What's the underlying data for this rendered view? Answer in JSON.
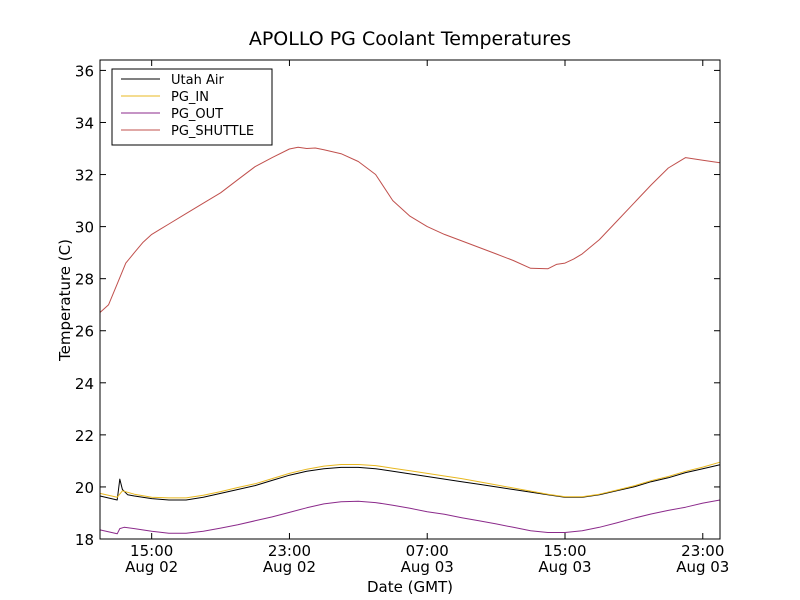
{
  "chart_data": {
    "type": "line",
    "title": "APOLLO PG Coolant Temperatures",
    "xlabel": "Date (GMT)",
    "ylabel": "Temperature (C)",
    "xlim": [
      0,
      36
    ],
    "ylim": [
      18,
      36.4
    ],
    "y_ticks": [
      18,
      20,
      22,
      24,
      26,
      28,
      30,
      32,
      34,
      36
    ],
    "x_ticks": [
      {
        "x": 3,
        "time": "15:00",
        "date": "Aug 02"
      },
      {
        "x": 11,
        "time": "23:00",
        "date": "Aug 02"
      },
      {
        "x": 19,
        "time": "07:00",
        "date": "Aug 03"
      },
      {
        "x": 27,
        "time": "15:00",
        "date": "Aug 03"
      },
      {
        "x": 35,
        "time": "23:00",
        "date": "Aug 03"
      }
    ],
    "legend_position": "top-left",
    "series": [
      {
        "name": "Utah Air",
        "color": "#000000",
        "x": [
          0,
          1,
          1.15,
          1.3,
          1.6,
          2,
          3,
          4,
          5,
          6,
          7,
          8,
          9,
          10,
          11,
          12,
          13,
          14,
          15,
          16,
          17,
          18,
          19,
          20,
          21,
          22,
          23,
          24,
          25,
          26,
          27,
          28,
          29,
          30,
          31,
          32,
          33,
          34,
          35,
          36
        ],
        "y": [
          19.65,
          19.5,
          20.3,
          19.9,
          19.7,
          19.65,
          19.55,
          19.5,
          19.5,
          19.6,
          19.75,
          19.9,
          20.05,
          20.25,
          20.45,
          20.6,
          20.7,
          20.75,
          20.75,
          20.7,
          20.6,
          20.5,
          20.4,
          20.3,
          20.2,
          20.1,
          20.0,
          19.9,
          19.8,
          19.7,
          19.6,
          19.6,
          19.7,
          19.85,
          20.0,
          20.2,
          20.35,
          20.55,
          20.7,
          20.85
        ]
      },
      {
        "name": "PG_IN",
        "color": "#e8b820",
        "x": [
          0,
          1,
          1.3,
          2,
          3,
          4,
          5,
          6,
          7,
          8,
          9,
          10,
          11,
          12,
          13,
          14,
          15,
          16,
          17,
          18,
          19,
          20,
          21,
          22,
          23,
          24,
          25,
          26,
          27,
          28,
          29,
          30,
          31,
          32,
          33,
          34,
          35,
          36
        ],
        "y": [
          19.75,
          19.6,
          19.85,
          19.72,
          19.6,
          19.58,
          19.58,
          19.68,
          19.82,
          19.98,
          20.12,
          20.32,
          20.52,
          20.68,
          20.8,
          20.86,
          20.86,
          20.82,
          20.72,
          20.62,
          20.52,
          20.42,
          20.32,
          20.2,
          20.08,
          19.96,
          19.84,
          19.72,
          19.62,
          19.62,
          19.72,
          19.88,
          20.04,
          20.24,
          20.4,
          20.6,
          20.76,
          20.95
        ]
      },
      {
        "name": "PG_OUT",
        "color": "#8b2a8b",
        "x": [
          0,
          1,
          1.15,
          1.4,
          2,
          3,
          4,
          5,
          6,
          7,
          8,
          9,
          10,
          11,
          12,
          13,
          14,
          15,
          16,
          17,
          18,
          19,
          20,
          21,
          22,
          23,
          24,
          25,
          26,
          27,
          28,
          29,
          30,
          31,
          32,
          33,
          34,
          35,
          36
        ],
        "y": [
          18.35,
          18.2,
          18.4,
          18.45,
          18.4,
          18.3,
          18.22,
          18.22,
          18.3,
          18.42,
          18.55,
          18.7,
          18.85,
          19.02,
          19.2,
          19.35,
          19.43,
          19.45,
          19.4,
          19.3,
          19.18,
          19.05,
          18.95,
          18.82,
          18.7,
          18.58,
          18.45,
          18.32,
          18.25,
          18.25,
          18.32,
          18.45,
          18.62,
          18.8,
          18.96,
          19.1,
          19.22,
          19.38,
          19.5
        ]
      },
      {
        "name": "PG_SHUTTLE",
        "color": "#c0504d",
        "x": [
          0,
          0.5,
          1,
          1.5,
          2,
          2.5,
          3,
          3.5,
          4,
          5,
          6,
          7,
          8,
          9,
          10,
          11,
          11.5,
          12,
          12.5,
          13,
          14,
          15,
          16,
          17,
          18,
          19,
          20,
          21,
          22,
          23,
          24,
          25,
          26,
          26.5,
          27,
          27.5,
          28,
          29,
          30,
          31,
          32,
          33,
          33.5,
          34,
          35,
          36
        ],
        "y": [
          26.7,
          27.0,
          27.8,
          28.6,
          29.0,
          29.4,
          29.7,
          29.9,
          30.1,
          30.5,
          30.9,
          31.3,
          31.8,
          32.3,
          32.65,
          32.98,
          33.05,
          33.0,
          33.02,
          32.95,
          32.8,
          32.5,
          32.0,
          31.0,
          30.4,
          30.0,
          29.7,
          29.45,
          29.2,
          28.95,
          28.7,
          28.4,
          28.38,
          28.55,
          28.6,
          28.75,
          28.95,
          29.5,
          30.2,
          30.9,
          31.6,
          32.25,
          32.45,
          32.65,
          32.55,
          32.45
        ]
      }
    ]
  }
}
